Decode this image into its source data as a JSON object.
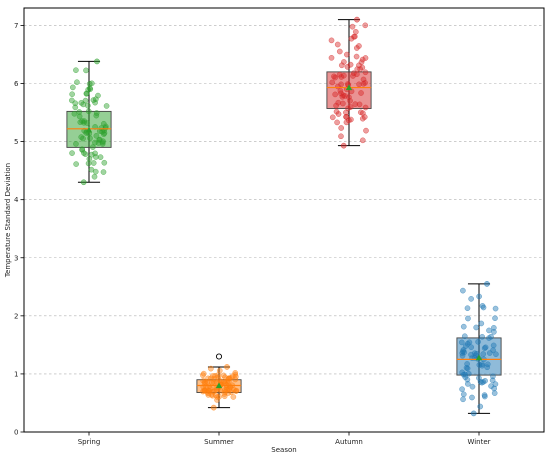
{
  "chart_data": {
    "type": "box",
    "title": "",
    "xlabel": "Season",
    "ylabel": "Temperature Standard Deviation",
    "ylim": [
      0,
      7.3
    ],
    "yticks": [
      0,
      1,
      2,
      3,
      4,
      5,
      6,
      7
    ],
    "grid": "horizontal dashed",
    "categories": [
      "Spring",
      "Summer",
      "Autumn",
      "Winter"
    ],
    "boxes": [
      {
        "category": "Spring",
        "color": "#2ca02c",
        "whisker_low": 4.3,
        "q1": 4.9,
        "median": 5.22,
        "q3": 5.52,
        "whisker_high": 6.38,
        "mean": 5.2,
        "outliers": []
      },
      {
        "category": "Summer",
        "color": "#ff7f0e",
        "whisker_low": 0.42,
        "q1": 0.68,
        "median": 0.8,
        "q3": 0.9,
        "whisker_high": 1.12,
        "mean": 0.8,
        "outliers": [
          1.3
        ]
      },
      {
        "category": "Autumn",
        "color": "#d62728",
        "whisker_low": 4.93,
        "q1": 5.57,
        "median": 5.93,
        "q3": 6.2,
        "whisker_high": 7.1,
        "mean": 5.93,
        "outliers": []
      },
      {
        "category": "Winter",
        "color": "#1f77b4",
        "whisker_low": 0.32,
        "q1": 0.98,
        "median": 1.25,
        "q3": 1.62,
        "whisker_high": 2.55,
        "mean": 1.28,
        "outliers": []
      }
    ],
    "median_color": "#ff7f0e",
    "mean_marker_color": "#2ca02c",
    "points_per_box": 80
  }
}
